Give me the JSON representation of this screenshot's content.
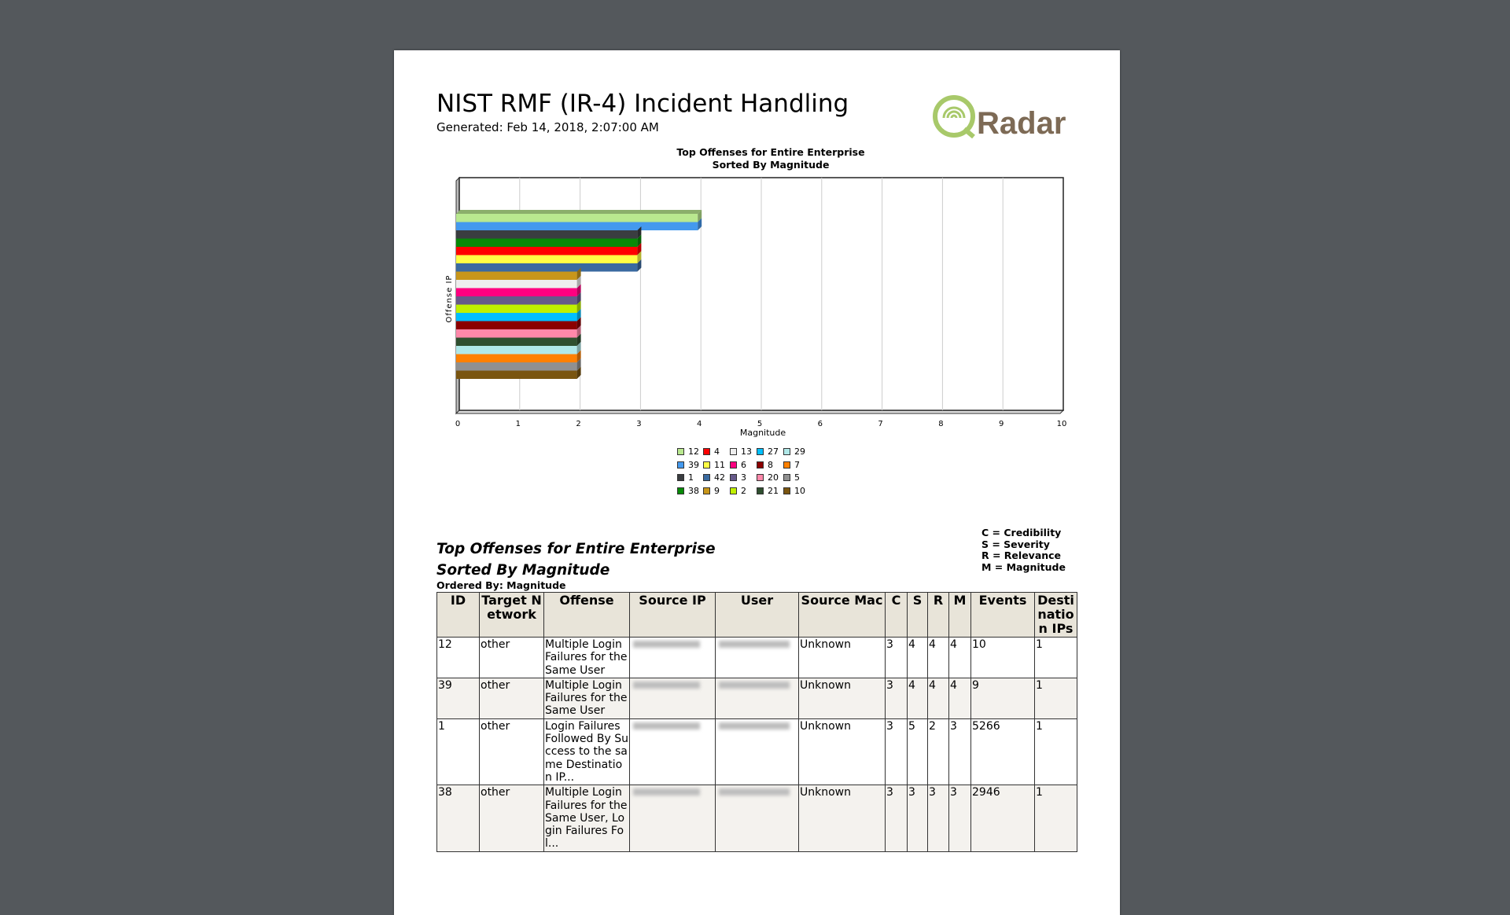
{
  "report": {
    "title": "NIST RMF (IR-4) Incident Handling",
    "generated": "Generated: Feb 14, 2018, 2:07:00 AM",
    "logo_text": "Radar"
  },
  "chart_data": {
    "type": "bar",
    "orientation": "horizontal",
    "title": "Top Offenses for Entire Enterprise",
    "subtitle": "Sorted By Magnitude",
    "xlabel": "Magnitude",
    "ylabel": "Offense IP",
    "xlim": [
      0,
      10
    ],
    "xticks": [
      "0",
      "1",
      "2",
      "3",
      "4",
      "5",
      "6",
      "7",
      "8",
      "9",
      "10"
    ],
    "grid": true,
    "legend_position": "bottom",
    "series": [
      {
        "name": "12",
        "value": 4,
        "color": "#b9e88f"
      },
      {
        "name": "39",
        "value": 4,
        "color": "#4499ee"
      },
      {
        "name": "1",
        "value": 3,
        "color": "#3a3d40"
      },
      {
        "name": "38",
        "value": 3,
        "color": "#078a07"
      },
      {
        "name": "4",
        "value": 3,
        "color": "#ff0000"
      },
      {
        "name": "11",
        "value": 3,
        "color": "#ffff44"
      },
      {
        "name": "42",
        "value": 3,
        "color": "#3a6aa0"
      },
      {
        "name": "9",
        "value": 2,
        "color": "#c8961a"
      },
      {
        "name": "13",
        "value": 2,
        "color": "#eeeeee"
      },
      {
        "name": "6",
        "value": 2,
        "color": "#ff0080"
      },
      {
        "name": "3",
        "value": 2,
        "color": "#665a8a"
      },
      {
        "name": "2",
        "value": 2,
        "color": "#c0f000"
      },
      {
        "name": "27",
        "value": 2,
        "color": "#00bfff"
      },
      {
        "name": "8",
        "value": 2,
        "color": "#8b0000"
      },
      {
        "name": "20",
        "value": 2,
        "color": "#ff88aa"
      },
      {
        "name": "21",
        "value": 2,
        "color": "#2f4f2f"
      },
      {
        "name": "29",
        "value": 2,
        "color": "#b0e8e8"
      },
      {
        "name": "7",
        "value": 2,
        "color": "#ff8000"
      },
      {
        "name": "5",
        "value": 2,
        "color": "#909090"
      },
      {
        "name": "10",
        "value": 2,
        "color": "#7a5510"
      }
    ]
  },
  "section": {
    "title_line1": "Top Offenses for Entire Enterprise",
    "title_line2": "Sorted By Magnitude",
    "ordered_by": "Ordered By: Magnitude",
    "abbreviations": [
      "C = Credibility",
      "S = Severity",
      "R = Relevance",
      "M = Magnitude"
    ]
  },
  "table": {
    "columns": [
      "ID",
      "Target Network",
      "Offense",
      "Source IP",
      "User",
      "Source Mac",
      "C",
      "S",
      "R",
      "M",
      "Events",
      "Destination IPs"
    ],
    "rows": [
      {
        "id": "12",
        "network": "other",
        "offense": "Multiple Login Failures for the Same User",
        "mac": "Unknown",
        "c": "3",
        "s": "4",
        "r": "4",
        "m": "4",
        "events": "10",
        "dest": "1"
      },
      {
        "id": "39",
        "network": "other",
        "offense": "Multiple Login Failures for the Same User",
        "mac": "Unknown",
        "c": "3",
        "s": "4",
        "r": "4",
        "m": "4",
        "events": "9",
        "dest": "1"
      },
      {
        "id": "1",
        "network": "other",
        "offense": "Login Failures Followed By Success to the same Destination IP...",
        "mac": "Unknown",
        "c": "3",
        "s": "5",
        "r": "2",
        "m": "3",
        "events": "5266",
        "dest": "1"
      },
      {
        "id": "38",
        "network": "other",
        "offense": "Multiple Login Failures for the Same User, Login Failures Fol...",
        "mac": "Unknown",
        "c": "3",
        "s": "3",
        "r": "3",
        "m": "3",
        "events": "2946",
        "dest": "1"
      }
    ]
  }
}
